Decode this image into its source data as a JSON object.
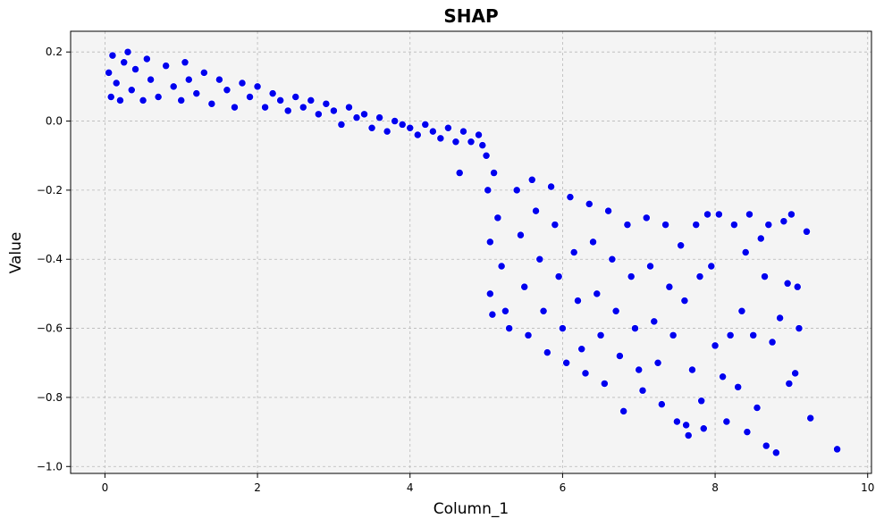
{
  "chart_data": {
    "type": "scatter",
    "title": "SHAP",
    "xlabel": "Column_1",
    "ylabel": "Value",
    "xlim": [
      -0.45,
      10.05
    ],
    "ylim": [
      -1.02,
      0.26
    ],
    "xticks": [
      0,
      2,
      4,
      6,
      8,
      10
    ],
    "xtick_labels": [
      "0",
      "2",
      "4",
      "6",
      "8",
      "10"
    ],
    "yticks": [
      -1.0,
      -0.8,
      -0.6,
      -0.4,
      -0.2,
      0.0,
      0.2
    ],
    "ytick_labels": [
      "−1.0",
      "−0.8",
      "−0.6",
      "−0.4",
      "−0.2",
      "0.0",
      "0.2"
    ],
    "grid": true,
    "legend": "none",
    "colors": {
      "point": "#0000ee",
      "plot_background": "#f4f4f4"
    },
    "series": [
      {
        "points": [
          [
            0.05,
            0.14
          ],
          [
            0.08,
            0.07
          ],
          [
            0.1,
            0.19
          ],
          [
            0.15,
            0.11
          ],
          [
            0.2,
            0.06
          ],
          [
            0.25,
            0.17
          ],
          [
            0.3,
            0.2
          ],
          [
            0.35,
            0.09
          ],
          [
            0.4,
            0.15
          ],
          [
            0.5,
            0.06
          ],
          [
            0.55,
            0.18
          ],
          [
            0.6,
            0.12
          ],
          [
            0.7,
            0.07
          ],
          [
            0.8,
            0.16
          ],
          [
            0.9,
            0.1
          ],
          [
            1.0,
            0.06
          ],
          [
            1.05,
            0.17
          ],
          [
            1.1,
            0.12
          ],
          [
            1.2,
            0.08
          ],
          [
            1.3,
            0.14
          ],
          [
            1.4,
            0.05
          ],
          [
            1.5,
            0.12
          ],
          [
            1.6,
            0.09
          ],
          [
            1.7,
            0.04
          ],
          [
            1.8,
            0.11
          ],
          [
            1.9,
            0.07
          ],
          [
            2.0,
            0.1
          ],
          [
            2.1,
            0.04
          ],
          [
            2.2,
            0.08
          ],
          [
            2.3,
            0.06
          ],
          [
            2.4,
            0.03
          ],
          [
            2.5,
            0.07
          ],
          [
            2.6,
            0.04
          ],
          [
            2.7,
            0.06
          ],
          [
            2.8,
            0.02
          ],
          [
            2.9,
            0.05
          ],
          [
            3.0,
            0.03
          ],
          [
            3.1,
            -0.01
          ],
          [
            3.2,
            0.04
          ],
          [
            3.3,
            0.01
          ],
          [
            3.4,
            0.02
          ],
          [
            3.5,
            -0.02
          ],
          [
            3.6,
            0.01
          ],
          [
            3.7,
            -0.03
          ],
          [
            3.8,
            0.0
          ],
          [
            3.9,
            -0.01
          ],
          [
            4.0,
            -0.02
          ],
          [
            4.1,
            -0.04
          ],
          [
            4.2,
            -0.01
          ],
          [
            4.3,
            -0.03
          ],
          [
            4.4,
            -0.05
          ],
          [
            4.5,
            -0.02
          ],
          [
            4.6,
            -0.06
          ],
          [
            4.65,
            -0.15
          ],
          [
            4.7,
            -0.03
          ],
          [
            4.8,
            -0.06
          ],
          [
            4.9,
            -0.04
          ],
          [
            4.95,
            -0.07
          ],
          [
            5.0,
            -0.1
          ],
          [
            5.02,
            -0.2
          ],
          [
            5.05,
            -0.35
          ],
          [
            5.05,
            -0.5
          ],
          [
            5.08,
            -0.56
          ],
          [
            5.1,
            -0.15
          ],
          [
            5.15,
            -0.28
          ],
          [
            5.2,
            -0.42
          ],
          [
            5.25,
            -0.55
          ],
          [
            5.3,
            -0.6
          ],
          [
            5.4,
            -0.2
          ],
          [
            5.45,
            -0.33
          ],
          [
            5.5,
            -0.48
          ],
          [
            5.55,
            -0.62
          ],
          [
            5.6,
            -0.17
          ],
          [
            5.65,
            -0.26
          ],
          [
            5.7,
            -0.4
          ],
          [
            5.75,
            -0.55
          ],
          [
            5.8,
            -0.67
          ],
          [
            5.85,
            -0.19
          ],
          [
            5.9,
            -0.3
          ],
          [
            5.95,
            -0.45
          ],
          [
            6.0,
            -0.6
          ],
          [
            6.05,
            -0.7
          ],
          [
            6.1,
            -0.22
          ],
          [
            6.15,
            -0.38
          ],
          [
            6.2,
            -0.52
          ],
          [
            6.25,
            -0.66
          ],
          [
            6.3,
            -0.73
          ],
          [
            6.35,
            -0.24
          ],
          [
            6.4,
            -0.35
          ],
          [
            6.45,
            -0.5
          ],
          [
            6.5,
            -0.62
          ],
          [
            6.55,
            -0.76
          ],
          [
            6.6,
            -0.26
          ],
          [
            6.65,
            -0.4
          ],
          [
            6.7,
            -0.55
          ],
          [
            6.75,
            -0.68
          ],
          [
            6.8,
            -0.84
          ],
          [
            6.85,
            -0.3
          ],
          [
            6.9,
            -0.45
          ],
          [
            6.95,
            -0.6
          ],
          [
            7.0,
            -0.72
          ],
          [
            7.05,
            -0.78
          ],
          [
            7.1,
            -0.28
          ],
          [
            7.15,
            -0.42
          ],
          [
            7.2,
            -0.58
          ],
          [
            7.25,
            -0.7
          ],
          [
            7.3,
            -0.82
          ],
          [
            7.35,
            -0.3
          ],
          [
            7.4,
            -0.48
          ],
          [
            7.45,
            -0.62
          ],
          [
            7.5,
            -0.87
          ],
          [
            7.55,
            -0.36
          ],
          [
            7.6,
            -0.52
          ],
          [
            7.62,
            -0.88
          ],
          [
            7.65,
            -0.91
          ],
          [
            7.7,
            -0.72
          ],
          [
            7.75,
            -0.3
          ],
          [
            7.8,
            -0.45
          ],
          [
            7.82,
            -0.81
          ],
          [
            7.85,
            -0.89
          ],
          [
            7.9,
            -0.27
          ],
          [
            7.95,
            -0.42
          ],
          [
            8.0,
            -0.65
          ],
          [
            8.05,
            -0.27
          ],
          [
            8.1,
            -0.74
          ],
          [
            8.15,
            -0.87
          ],
          [
            8.2,
            -0.62
          ],
          [
            8.25,
            -0.3
          ],
          [
            8.3,
            -0.77
          ],
          [
            8.35,
            -0.55
          ],
          [
            8.4,
            -0.38
          ],
          [
            8.42,
            -0.9
          ],
          [
            8.45,
            -0.27
          ],
          [
            8.5,
            -0.62
          ],
          [
            8.55,
            -0.83
          ],
          [
            8.6,
            -0.34
          ],
          [
            8.65,
            -0.45
          ],
          [
            8.67,
            -0.94
          ],
          [
            8.7,
            -0.3
          ],
          [
            8.75,
            -0.64
          ],
          [
            8.8,
            -0.96
          ],
          [
            8.85,
            -0.57
          ],
          [
            8.9,
            -0.29
          ],
          [
            8.95,
            -0.47
          ],
          [
            8.97,
            -0.76
          ],
          [
            9.0,
            -0.27
          ],
          [
            9.05,
            -0.73
          ],
          [
            9.08,
            -0.48
          ],
          [
            9.1,
            -0.6
          ],
          [
            9.2,
            -0.32
          ],
          [
            9.25,
            -0.86
          ],
          [
            9.6,
            -0.95
          ]
        ]
      }
    ]
  }
}
